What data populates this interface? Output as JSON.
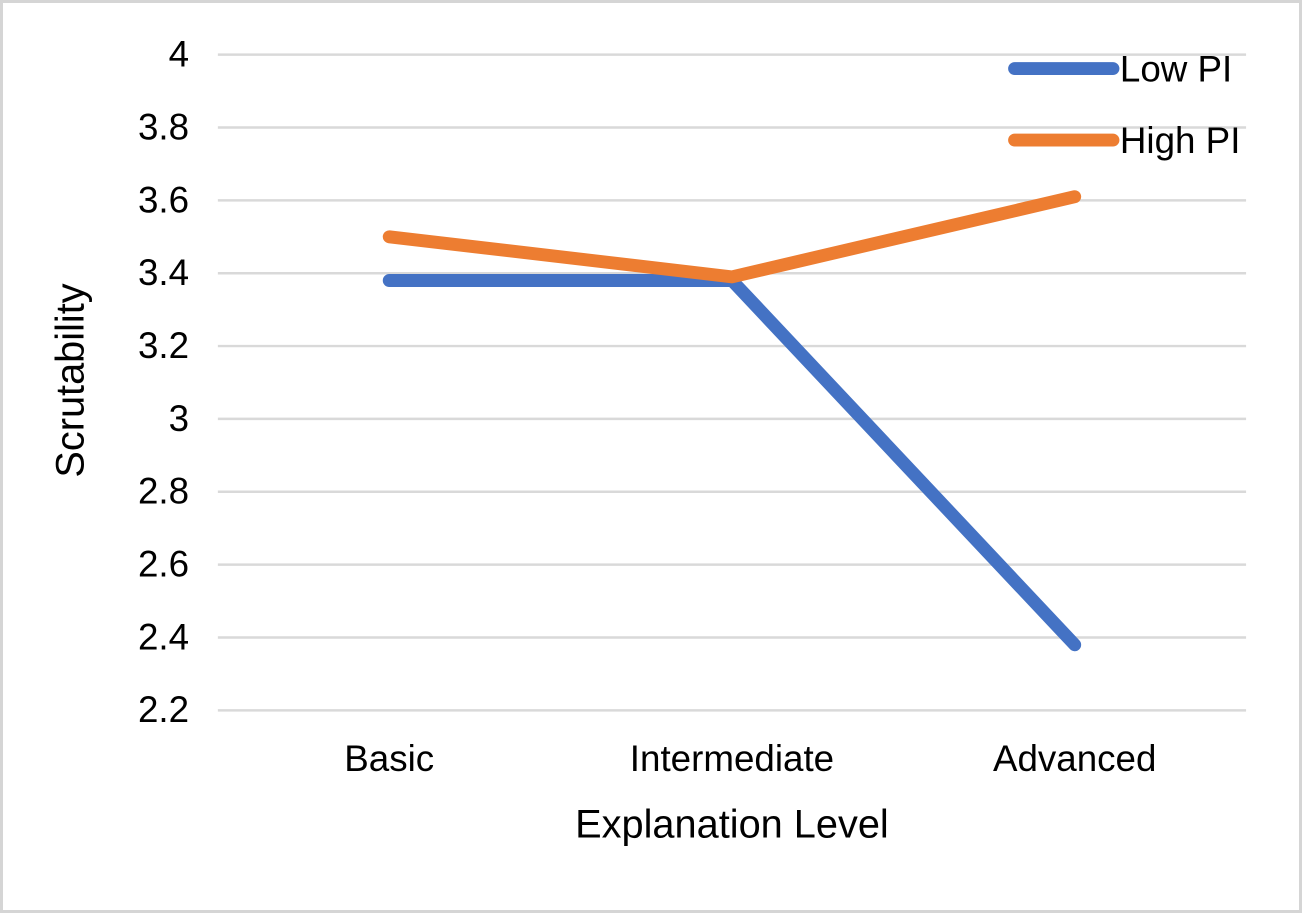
{
  "frame": {
    "background_color": "#ffffff",
    "border_color": "#d5d5d5"
  },
  "chart_data": {
    "type": "line",
    "title": "",
    "categories": [
      "Basic",
      "Intermediate",
      "Advanced"
    ],
    "series": [
      {
        "name": "Low PI",
        "color": "#4472C4",
        "values": [
          3.38,
          3.38,
          2.38
        ]
      },
      {
        "name": "High PI",
        "color": "#ED7D31",
        "values": [
          3.5,
          3.39,
          3.61
        ]
      }
    ],
    "xlabel": "Explanation Level",
    "ylabel": "Scrutability",
    "ylim": [
      2.2,
      4.0
    ],
    "ytick_step": 0.2,
    "ytick_labels": [
      "2.2",
      "2.4",
      "2.6",
      "2.8",
      "3",
      "3.2",
      "3.4",
      "3.6",
      "3.8",
      "4"
    ],
    "grid": true,
    "gridline_color": "#d9d9d9",
    "text_color": "#000000",
    "legend_position": "top-right"
  }
}
